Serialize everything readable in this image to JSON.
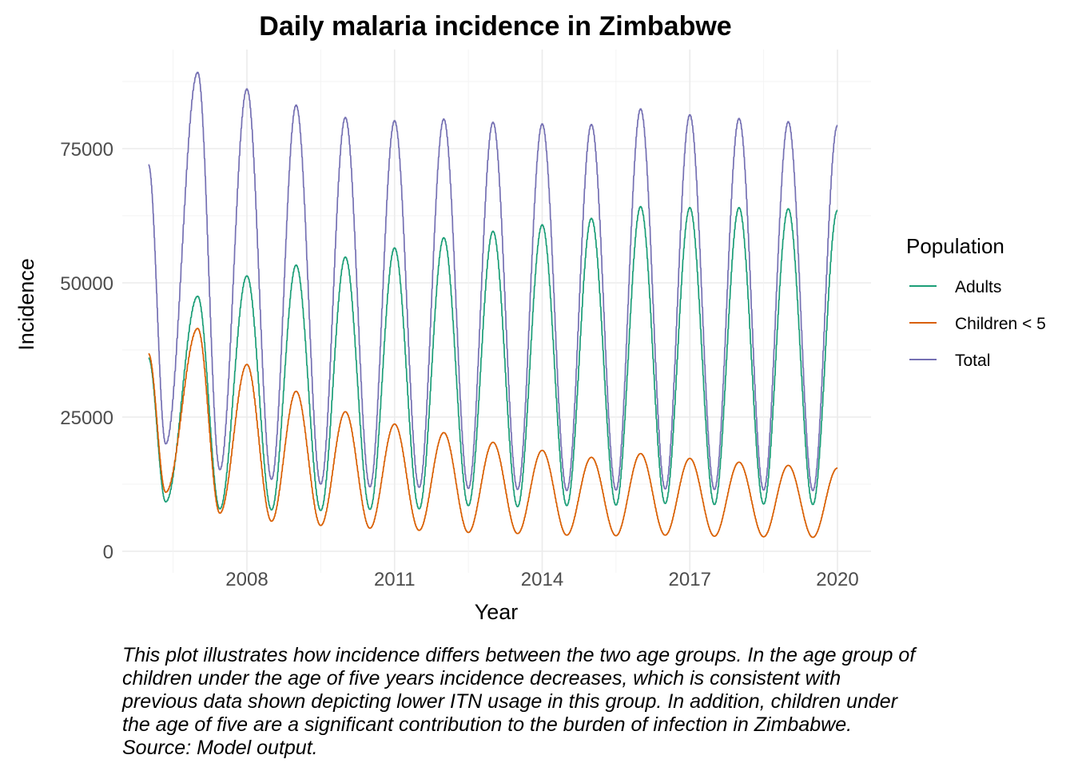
{
  "chart_data": {
    "type": "line",
    "title": "Daily malaria incidence in Zimbabwe",
    "xlabel": "Year",
    "ylabel": "Incidence",
    "xlim": [
      2006.0,
      2020.0
    ],
    "ylim": [
      0,
      90000
    ],
    "x_ticks": [
      2008,
      2011,
      2014,
      2017,
      2020
    ],
    "y_ticks": [
      0,
      25000,
      50000,
      75000
    ],
    "x_tick_labels": [
      "2008",
      "2011",
      "2014",
      "2017",
      "2020"
    ],
    "y_tick_labels": [
      "0",
      "25000",
      "50000",
      "75000"
    ],
    "grid": true,
    "legend": {
      "title": "Population",
      "placement": "right"
    },
    "series": [
      {
        "name": "Adults",
        "color": "#1b9e77",
        "peaks": [
          [
            2007.0,
            47500
          ],
          [
            2008.0,
            51300
          ],
          [
            2009.0,
            53300
          ],
          [
            2010.0,
            54800
          ],
          [
            2011.0,
            56500
          ],
          [
            2012.0,
            58400
          ],
          [
            2013.0,
            59600
          ],
          [
            2014.0,
            60800
          ],
          [
            2015.0,
            62000
          ],
          [
            2016.0,
            64200
          ],
          [
            2017.0,
            64000
          ],
          [
            2018.0,
            64000
          ],
          [
            2019.0,
            63800
          ]
        ],
        "troughs": [
          [
            2006.0,
            36000
          ],
          [
            2006.35,
            9200
          ],
          [
            2007.45,
            7900
          ],
          [
            2008.5,
            7700
          ],
          [
            2009.5,
            7600
          ],
          [
            2010.5,
            7800
          ],
          [
            2011.5,
            7900
          ],
          [
            2012.5,
            8500
          ],
          [
            2013.5,
            8300
          ],
          [
            2014.5,
            8500
          ],
          [
            2015.5,
            8600
          ],
          [
            2016.5,
            8900
          ],
          [
            2017.5,
            8700
          ],
          [
            2018.5,
            8800
          ],
          [
            2019.5,
            8700
          ],
          [
            2020.0,
            63500
          ]
        ]
      },
      {
        "name": "Children < 5",
        "color": "#d95f02",
        "peaks": [
          [
            2006.0,
            36800
          ],
          [
            2007.0,
            41500
          ],
          [
            2008.0,
            34800
          ],
          [
            2009.0,
            29800
          ],
          [
            2010.0,
            26000
          ],
          [
            2011.0,
            23700
          ],
          [
            2012.0,
            22100
          ],
          [
            2013.0,
            20300
          ],
          [
            2014.0,
            18800
          ],
          [
            2015.0,
            17500
          ],
          [
            2016.0,
            18200
          ],
          [
            2017.0,
            17300
          ],
          [
            2018.0,
            16600
          ],
          [
            2019.0,
            16000
          ],
          [
            2020.0,
            15500
          ]
        ],
        "troughs": [
          [
            2006.35,
            11000
          ],
          [
            2007.45,
            7100
          ],
          [
            2008.5,
            5600
          ],
          [
            2009.5,
            4800
          ],
          [
            2010.5,
            4300
          ],
          [
            2011.5,
            3900
          ],
          [
            2012.5,
            3500
          ],
          [
            2013.5,
            3300
          ],
          [
            2014.5,
            3000
          ],
          [
            2015.5,
            2900
          ],
          [
            2016.5,
            3000
          ],
          [
            2017.5,
            2800
          ],
          [
            2018.5,
            2700
          ],
          [
            2019.5,
            2600
          ]
        ]
      },
      {
        "name": "Total",
        "color": "#7570b3",
        "peaks": [
          [
            2006.0,
            72000
          ],
          [
            2007.0,
            89200
          ],
          [
            2008.0,
            86100
          ],
          [
            2009.0,
            83100
          ],
          [
            2010.0,
            80800
          ],
          [
            2011.0,
            80200
          ],
          [
            2012.0,
            80500
          ],
          [
            2013.0,
            79900
          ],
          [
            2014.0,
            79600
          ],
          [
            2015.0,
            79500
          ],
          [
            2016.0,
            82400
          ],
          [
            2017.0,
            81300
          ],
          [
            2018.0,
            80600
          ],
          [
            2019.0,
            80000
          ],
          [
            2020.0,
            79300
          ]
        ],
        "troughs": [
          [
            2006.35,
            20000
          ],
          [
            2007.45,
            15200
          ],
          [
            2008.5,
            13400
          ],
          [
            2009.5,
            12500
          ],
          [
            2010.5,
            12000
          ],
          [
            2011.5,
            11900
          ],
          [
            2012.5,
            11700
          ],
          [
            2013.5,
            11500
          ],
          [
            2014.5,
            11300
          ],
          [
            2015.5,
            11400
          ],
          [
            2016.5,
            11600
          ],
          [
            2017.5,
            11500
          ],
          [
            2018.5,
            11400
          ],
          [
            2019.5,
            11300
          ]
        ]
      }
    ]
  },
  "caption": "This plot illustrates how incidence differs between the two age groups. In the age group of children under the age of five years incidence decreases, which is consistent with previous data shown depicting lower ITN usage in this group. In addition, children under the age of five are a significant contribution to the burden of infection in Zimbabwe. Source: Model output."
}
